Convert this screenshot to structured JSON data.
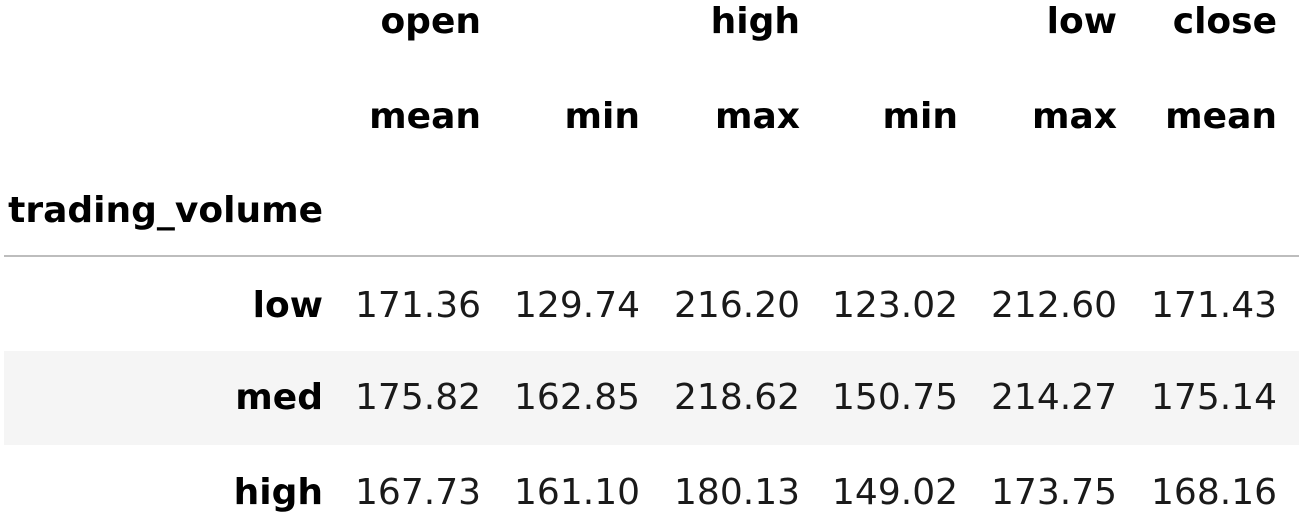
{
  "table": {
    "top_headers": [
      "open",
      "high",
      "low",
      "close"
    ],
    "sub_headers": [
      "mean",
      "min",
      "max",
      "min",
      "max",
      "mean"
    ],
    "index_name": "trading_volume",
    "rows": [
      {
        "label": "low",
        "values": [
          "171.36",
          "129.74",
          "216.20",
          "123.02",
          "212.60",
          "171.43"
        ]
      },
      {
        "label": "med",
        "values": [
          "175.82",
          "162.85",
          "218.62",
          "150.75",
          "214.27",
          "175.14"
        ]
      },
      {
        "label": "high",
        "values": [
          "167.73",
          "161.10",
          "180.13",
          "149.02",
          "173.75",
          "168.16"
        ]
      }
    ]
  }
}
